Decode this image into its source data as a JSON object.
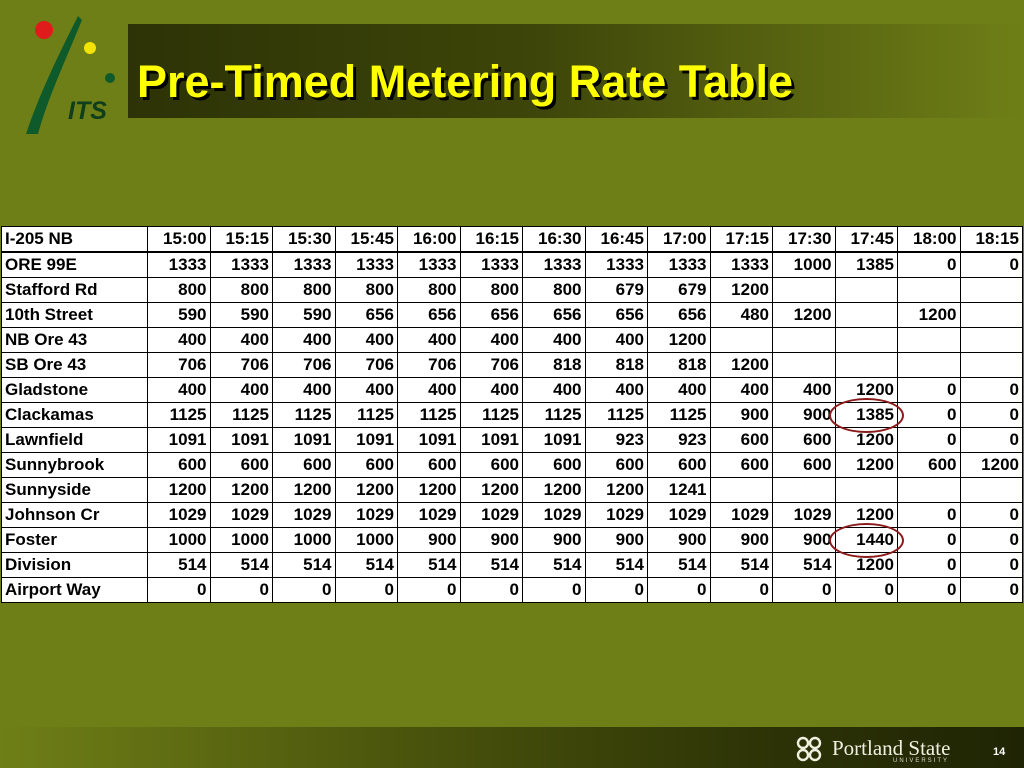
{
  "slide": {
    "title": "Pre-Timed Metering Rate Table",
    "logo_text": "ITS",
    "footer_org": "Portland State",
    "footer_sub": "UNIVERSITY",
    "page_number": "14"
  },
  "table": {
    "corner": "I-205 NB",
    "columns": [
      "15:00",
      "15:15",
      "15:30",
      "15:45",
      "16:00",
      "16:15",
      "16:30",
      "16:45",
      "17:00",
      "17:15",
      "17:30",
      "17:45",
      "18:00",
      "18:15"
    ],
    "rows": [
      {
        "name": "ORE 99E",
        "values": [
          "1333",
          "1333",
          "1333",
          "1333",
          "1333",
          "1333",
          "1333",
          "1333",
          "1333",
          "1333",
          "1000",
          "1385",
          "0",
          "0"
        ]
      },
      {
        "name": "Stafford Rd",
        "values": [
          "800",
          "800",
          "800",
          "800",
          "800",
          "800",
          "800",
          "679",
          "679",
          "1200",
          "",
          "",
          "",
          ""
        ]
      },
      {
        "name": "10th Street",
        "values": [
          "590",
          "590",
          "590",
          "656",
          "656",
          "656",
          "656",
          "656",
          "656",
          "480",
          "1200",
          "",
          "1200",
          ""
        ]
      },
      {
        "name": "NB Ore 43",
        "values": [
          "400",
          "400",
          "400",
          "400",
          "400",
          "400",
          "400",
          "400",
          "1200",
          "",
          "",
          "",
          "",
          ""
        ]
      },
      {
        "name": "SB Ore 43",
        "values": [
          "706",
          "706",
          "706",
          "706",
          "706",
          "706",
          "818",
          "818",
          "818",
          "1200",
          "",
          "",
          "",
          ""
        ]
      },
      {
        "name": "Gladstone",
        "values": [
          "400",
          "400",
          "400",
          "400",
          "400",
          "400",
          "400",
          "400",
          "400",
          "400",
          "400",
          "1200",
          "0",
          "0"
        ]
      },
      {
        "name": "Clackamas",
        "values": [
          "1125",
          "1125",
          "1125",
          "1125",
          "1125",
          "1125",
          "1125",
          "1125",
          "1125",
          "900",
          "900",
          "1385",
          "0",
          "0"
        ]
      },
      {
        "name": "Lawnfield",
        "values": [
          "1091",
          "1091",
          "1091",
          "1091",
          "1091",
          "1091",
          "1091",
          "923",
          "923",
          "600",
          "600",
          "1200",
          "0",
          "0"
        ]
      },
      {
        "name": "Sunnybrook",
        "values": [
          "600",
          "600",
          "600",
          "600",
          "600",
          "600",
          "600",
          "600",
          "600",
          "600",
          "600",
          "1200",
          "600",
          "1200"
        ]
      },
      {
        "name": "Sunnyside",
        "values": [
          "1200",
          "1200",
          "1200",
          "1200",
          "1200",
          "1200",
          "1200",
          "1200",
          "1241",
          "",
          "",
          "",
          "",
          ""
        ]
      },
      {
        "name": "Johnson Cr",
        "values": [
          "1029",
          "1029",
          "1029",
          "1029",
          "1029",
          "1029",
          "1029",
          "1029",
          "1029",
          "1029",
          "1029",
          "1200",
          "0",
          "0"
        ]
      },
      {
        "name": "Foster",
        "values": [
          "1000",
          "1000",
          "1000",
          "1000",
          "900",
          "900",
          "900",
          "900",
          "900",
          "900",
          "900",
          "1440",
          "0",
          "0"
        ]
      },
      {
        "name": "Division",
        "values": [
          "514",
          "514",
          "514",
          "514",
          "514",
          "514",
          "514",
          "514",
          "514",
          "514",
          "514",
          "1200",
          "0",
          "0"
        ]
      },
      {
        "name": "Airport Way",
        "values": [
          "0",
          "0",
          "0",
          "0",
          "0",
          "0",
          "0",
          "0",
          "0",
          "0",
          "0",
          "0",
          "0",
          "0"
        ]
      }
    ]
  },
  "colors": {
    "background": "#6f7f17",
    "title": "#ffff00",
    "circle": "#8b1a1a",
    "logo_red": "#e01b1b",
    "logo_yellow": "#f2e400",
    "logo_green": "#0f5a2a"
  },
  "icons": {
    "logo": "its-logo-icon",
    "university": "psu-logo-icon"
  }
}
